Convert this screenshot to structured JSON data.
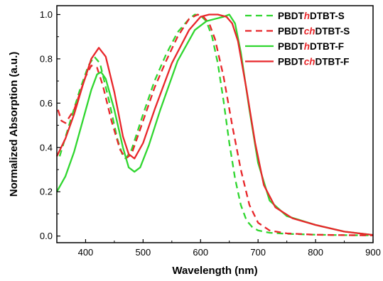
{
  "chart_data": {
    "type": "line",
    "xlabel": "Wavelength (nm)",
    "ylabel": "Normalized Absorption (a.u.)",
    "xlim": [
      350,
      900
    ],
    "ylim": [
      -0.03,
      1.04
    ],
    "xticks": [
      400,
      500,
      600,
      700,
      800,
      900
    ],
    "xtick_labels": [
      "400",
      "500",
      "600",
      "700",
      "800",
      "900"
    ],
    "yticks": [
      0.0,
      0.2,
      0.4,
      0.6,
      0.8,
      1.0
    ],
    "ytick_labels": [
      "0.0",
      "0.2",
      "0.4",
      "0.6",
      "0.8",
      "1.0"
    ],
    "grid": false,
    "legend_position": "top-right",
    "series": [
      {
        "name": "PBDThDTBT-S",
        "legend_parts": [
          "PBDT",
          "h",
          "DTBT-S"
        ],
        "color": "#2fd62f",
        "dash": true,
        "x": [
          355,
          370,
          390,
          405,
          415,
          425,
          440,
          455,
          465,
          470,
          480,
          500,
          520,
          540,
          560,
          580,
          590,
          600,
          610,
          620,
          630,
          640,
          650,
          660,
          670,
          680,
          690,
          700,
          720,
          750,
          800,
          850,
          900
        ],
        "y": [
          0.36,
          0.49,
          0.66,
          0.77,
          0.81,
          0.78,
          0.62,
          0.44,
          0.36,
          0.35,
          0.39,
          0.55,
          0.7,
          0.82,
          0.92,
          0.98,
          1.0,
          0.995,
          0.97,
          0.9,
          0.78,
          0.61,
          0.42,
          0.26,
          0.14,
          0.07,
          0.04,
          0.025,
          0.015,
          0.01,
          0.006,
          0.004,
          0.003
        ]
      },
      {
        "name": "PBDTchDTBT-S",
        "legend_parts": [
          "PBDT",
          "ch",
          "DTBT-S"
        ],
        "color": "#e8262a",
        "dash": true,
        "x": [
          352,
          358,
          365,
          380,
          400,
          410,
          420,
          430,
          445,
          460,
          470,
          480,
          500,
          520,
          540,
          560,
          580,
          595,
          605,
          615,
          625,
          640,
          655,
          670,
          685,
          700,
          720,
          750,
          800,
          850,
          900
        ],
        "y": [
          0.57,
          0.52,
          0.51,
          0.57,
          0.72,
          0.77,
          0.76,
          0.68,
          0.52,
          0.39,
          0.35,
          0.37,
          0.52,
          0.67,
          0.79,
          0.9,
          0.98,
          1.0,
          0.99,
          0.96,
          0.89,
          0.72,
          0.5,
          0.3,
          0.14,
          0.06,
          0.025,
          0.012,
          0.006,
          0.004,
          0.003
        ]
      },
      {
        "name": "PBDThDTBT-F",
        "legend_parts": [
          "PBDT",
          "h",
          "DTBT-F"
        ],
        "color": "#2fd62f",
        "dash": false,
        "x": [
          350,
          365,
          380,
          395,
          410,
          420,
          427,
          435,
          450,
          465,
          475,
          485,
          495,
          510,
          530,
          560,
          590,
          610,
          625,
          640,
          650,
          660,
          670,
          685,
          700,
          720,
          750,
          800,
          850,
          900
        ],
        "y": [
          0.2,
          0.27,
          0.38,
          0.52,
          0.66,
          0.73,
          0.74,
          0.71,
          0.57,
          0.4,
          0.31,
          0.29,
          0.31,
          0.41,
          0.57,
          0.79,
          0.93,
          0.97,
          0.98,
          0.99,
          1.0,
          0.96,
          0.83,
          0.57,
          0.33,
          0.16,
          0.09,
          0.05,
          0.02,
          0.005
        ]
      },
      {
        "name": "PBDTchDTBT-F",
        "legend_parts": [
          "PBDT",
          "ch",
          "DTBT-F"
        ],
        "color": "#e8262a",
        "dash": false,
        "x": [
          350,
          365,
          380,
          395,
          410,
          423,
          435,
          450,
          465,
          475,
          485,
          500,
          520,
          550,
          580,
          600,
          615,
          630,
          645,
          655,
          665,
          680,
          695,
          710,
          730,
          760,
          800,
          850,
          900
        ],
        "y": [
          0.36,
          0.44,
          0.55,
          0.68,
          0.8,
          0.85,
          0.81,
          0.65,
          0.45,
          0.37,
          0.35,
          0.42,
          0.57,
          0.78,
          0.93,
          0.99,
          1.0,
          1.0,
          0.99,
          0.96,
          0.88,
          0.66,
          0.42,
          0.23,
          0.13,
          0.08,
          0.05,
          0.02,
          0.005
        ]
      }
    ]
  }
}
